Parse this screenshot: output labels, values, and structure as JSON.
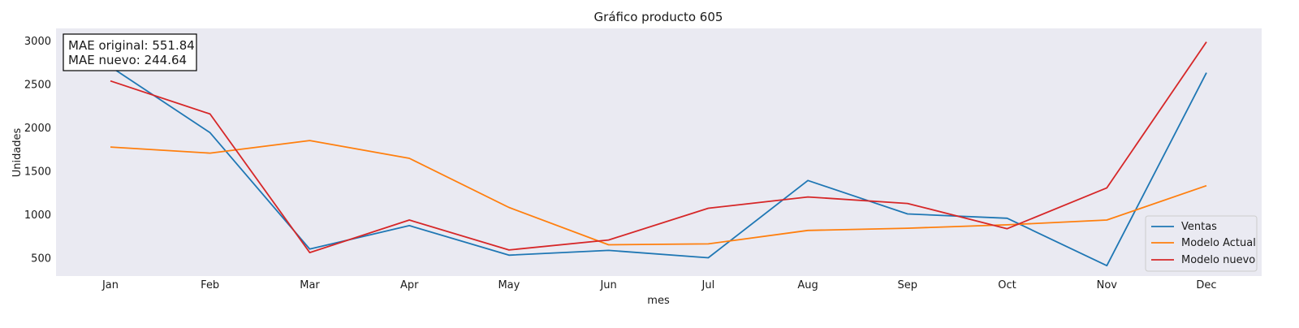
{
  "chart_data": {
    "type": "line",
    "title": "Gráfico producto 605",
    "xlabel": "mes",
    "ylabel": "Unidades",
    "categories": [
      "Jan",
      "Feb",
      "Mar",
      "Apr",
      "May",
      "Jun",
      "Jul",
      "Aug",
      "Sep",
      "Oct",
      "Nov",
      "Dec"
    ],
    "ylim": [
      290,
      3140
    ],
    "yticks": [
      500,
      1000,
      1500,
      2000,
      2500,
      3000
    ],
    "grid": false,
    "legend_position": "lower-right",
    "annotation": {
      "line1": "MAE original: 551.84",
      "line2": "MAE nuevo: 244.64"
    },
    "series": [
      {
        "name": "Ventas",
        "color": "#1f77b4",
        "values": [
          2700,
          1940,
          600,
          870,
          530,
          585,
          500,
          1390,
          1005,
          955,
          410,
          2630
        ]
      },
      {
        "name": "Modelo Actual",
        "color": "#ff7f0e",
        "values": [
          1775,
          1705,
          1850,
          1645,
          1080,
          650,
          660,
          815,
          840,
          880,
          935,
          1330
        ]
      },
      {
        "name": "Modelo nuevo",
        "color": "#d62728",
        "values": [
          2535,
          2155,
          560,
          935,
          590,
          705,
          1070,
          1200,
          1125,
          835,
          1305,
          2985
        ]
      }
    ]
  }
}
